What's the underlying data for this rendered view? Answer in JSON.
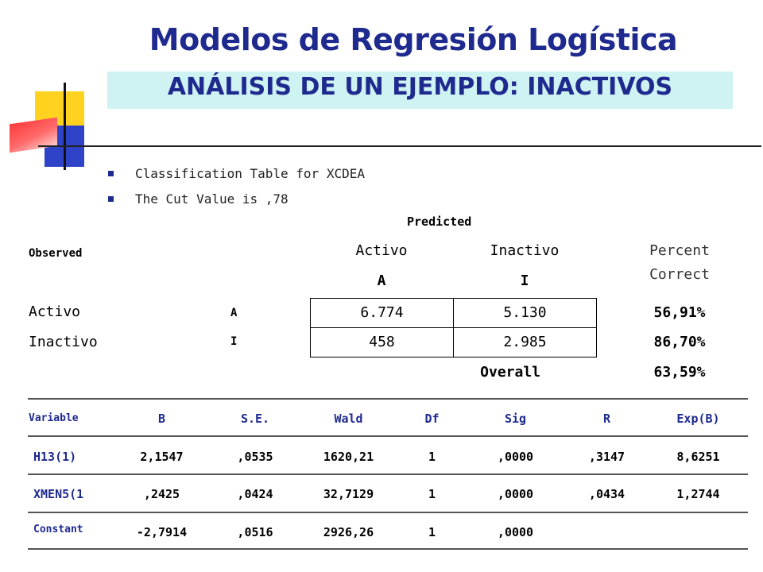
{
  "title": "Modelos de Regresión Logística",
  "subtitle": "ANÁLISIS DE UN EJEMPLO: INACTIVOS",
  "bullets": [
    "Classification Table for XCDEA",
    "The Cut Value is ,78"
  ],
  "classification": {
    "predicted_label": "Predicted",
    "observed_label": "Observed",
    "col_activo": "Activo",
    "col_inactivo": "Inactivo",
    "col_percent_line1": "Percent",
    "col_percent_line2": "Correct",
    "code_a": "A",
    "code_i": "I",
    "rows": [
      {
        "label": "Activo",
        "code": "A",
        "activo": "6.774",
        "inactivo": "5.130",
        "percent": "56,91%"
      },
      {
        "label": "Inactivo",
        "code": "I",
        "activo": "458",
        "inactivo": "2.985",
        "percent": "86,70%"
      }
    ],
    "overall_label": "Overall",
    "overall_value": "63,59%"
  },
  "coefficients": {
    "headers": [
      "Variable",
      "B",
      "S.E.",
      "Wald",
      "Df",
      "Sig",
      "R",
      "Exp(B)"
    ],
    "rows": [
      [
        "H13(1)",
        "2,1547",
        ",0535",
        "1620,21",
        "1",
        ",0000",
        ",3147",
        "8,6251"
      ],
      [
        "XMEN5(1",
        ",2425",
        ",0424",
        "32,7129",
        "1",
        ",0000",
        ",0434",
        "1,2744"
      ],
      [
        "Constant",
        "-2,7914",
        ",0516",
        "2926,26",
        "1",
        ",0000",
        "",
        ""
      ]
    ]
  }
}
